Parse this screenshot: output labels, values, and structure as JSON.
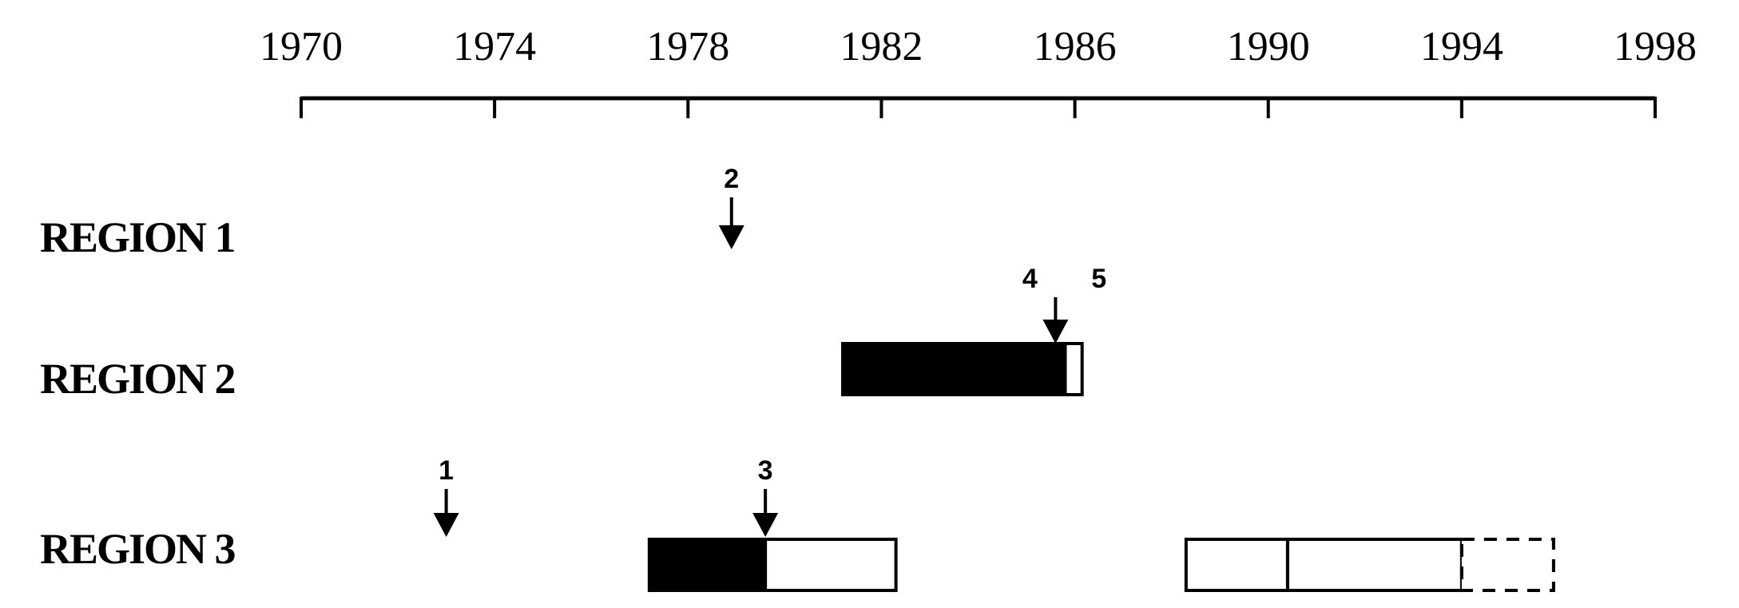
{
  "axis": {
    "years": [
      "1970",
      "1974",
      "1978",
      "1982",
      "1986",
      "1990",
      "1994",
      "1998"
    ],
    "start_year": 1970,
    "end_year": 1998
  },
  "regions": [
    {
      "label": "REGION 1"
    },
    {
      "label": "REGION 2"
    },
    {
      "label": "REGION 3"
    }
  ],
  "bars": [
    {
      "region": 1,
      "start": 1981.2,
      "end": 1985.8,
      "fill": "solid"
    },
    {
      "region": 1,
      "start": 1985.8,
      "end": 1986.15,
      "fill": "open"
    },
    {
      "region": 2,
      "start": 1977.2,
      "end": 1979.6,
      "fill": "solid"
    },
    {
      "region": 2,
      "start": 1979.6,
      "end": 1982.3,
      "fill": "open"
    },
    {
      "region": 2,
      "start": 1988.3,
      "end": 1990.4,
      "fill": "open"
    },
    {
      "region": 2,
      "start": 1990.4,
      "end": 1994.0,
      "fill": "open"
    },
    {
      "region": 2,
      "start": 1994.0,
      "end": 1995.9,
      "fill": "dashed"
    }
  ],
  "markers": [
    {
      "label": "2",
      "region": 0,
      "year": 1978.9
    },
    {
      "label": "4",
      "region": 1,
      "year": 1985.6
    },
    {
      "label": "5",
      "region": 1,
      "year": 1986.3
    },
    {
      "label": "1",
      "region": 2,
      "year": 1973.0
    },
    {
      "label": "3",
      "region": 2,
      "year": 1979.6
    }
  ],
  "colors": {
    "ink": "#000000",
    "background": "#ffffff"
  }
}
